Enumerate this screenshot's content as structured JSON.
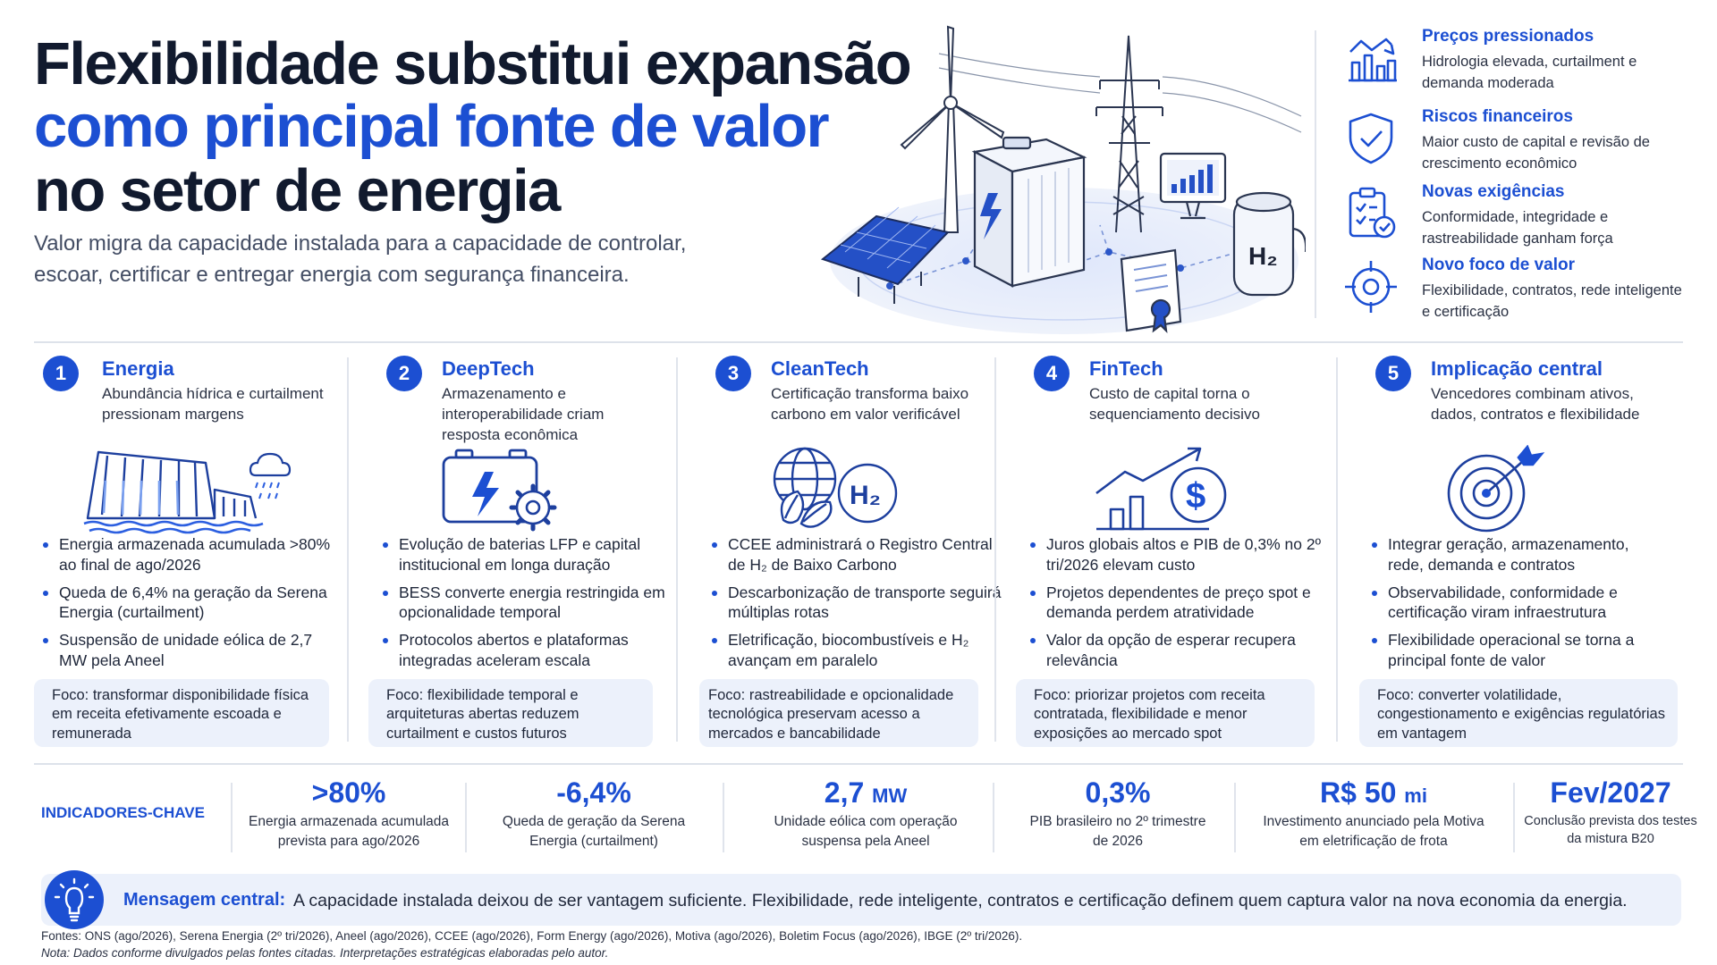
{
  "header": {
    "title_line1": "Flexibilidade substitui expansão",
    "title_line2": "como principal fonte de valor",
    "title_line3": "no setor de energia",
    "subtitle": "Valor migra da capacidade instalada para a capacidade de controlar, escoar, certificar e entregar energia com segurança financeira."
  },
  "highlights": [
    {
      "title": "Preços pressionados",
      "text": "Hidrologia elevada, curtailment e demanda moderada",
      "icon": "bar-chart-icon"
    },
    {
      "title": "Riscos financeiros",
      "text": "Maior custo de capital e revisão de crescimento econômico",
      "icon": "shield-check-icon"
    },
    {
      "title": "Novas exigências",
      "text": "Conformidade, integridade e rastreabilidade ganham força",
      "icon": "clipboard-check-icon"
    },
    {
      "title": "Novo foco de valor",
      "text": "Flexibilidade, contratos, rede inteligente e certificação",
      "icon": "target-crosshair-icon"
    }
  ],
  "hero": {
    "h2_label": "H₂"
  },
  "columns": [
    {
      "number": "1",
      "title": "Energia",
      "subtitle": "Abundância hídrica e curtailment pressionam margens",
      "icon": "hydro-dam-icon",
      "bullets": [
        "Energia armazenada acumulada >80% ao final de ago/2026",
        "Queda de 6,4% na geração da Serena Energia (curtailment)",
        "Suspensão de unidade eólica de 2,7 MW pela Aneel"
      ],
      "foco": "Foco: transformar disponibilidade física em receita efetivamente escoada e remunerada"
    },
    {
      "number": "2",
      "title": "DeepTech",
      "subtitle": "Armazenamento e interoperabilidade criam resposta econômica",
      "icon": "battery-gear-icon",
      "bullets": [
        "Evolução de baterias LFP e capital institucional em longa duração",
        "BESS converte energia restringida em opcionalidade temporal",
        "Protocolos abertos e plataformas integradas aceleram escala"
      ],
      "foco": "Foco: flexibilidade temporal e arquiteturas abertas reduzem curtailment e custos futuros"
    },
    {
      "number": "3",
      "title": "CleanTech",
      "subtitle": "Certificação transforma baixo carbono em valor verificável",
      "icon": "globe-leaf-h2-icon",
      "icon_label": "H₂",
      "bullets": [
        "CCEE administrará o Registro Central de H₂ de Baixo Carbono",
        "Descarbonização de transporte seguirá múltiplas rotas",
        "Eletrificação, biocombustíveis e H₂ avançam em paralelo"
      ],
      "foco": "Foco: rastreabilidade e opcionalidade tecnológica preservam acesso a mercados e bancabilidade"
    },
    {
      "number": "4",
      "title": "FinTech",
      "subtitle": "Custo de capital torna o sequenciamento decisivo",
      "icon": "growth-dollar-icon",
      "bullets": [
        "Juros globais altos e PIB de 0,3% no 2º tri/2026 elevam custo",
        "Projetos dependentes de preço spot e demanda perdem atratividade",
        "Valor da opção de esperar recupera relevância"
      ],
      "foco": "Foco: priorizar projetos com receita contratada, flexibilidade e menor exposições ao mercado spot"
    },
    {
      "number": "5",
      "title": "Implicação central",
      "subtitle": "Vencedores combinam ativos, dados, contratos e flexibilidade",
      "icon": "target-arrow-icon",
      "bullets": [
        "Integrar geração, armazenamento, rede, demanda e contratos",
        "Observabilidade, conformidade e certificação viram infraestrutura",
        "Flexibilidade operacional se torna a principal fonte de valor"
      ],
      "foco": "Foco: converter volatilidade, congestionamento e exigências regulatórias em vantagem"
    }
  ],
  "indicators": {
    "label": "INDICADORES-CHAVE",
    "items": [
      {
        "value": ">80%",
        "unit": "",
        "desc": "Energia armazenada acumulada prevista para ago/2026"
      },
      {
        "value": "-6,4%",
        "unit": "",
        "desc": "Queda de geração da Serena Energia (curtailment)"
      },
      {
        "value": "2,7",
        "unit": "MW",
        "desc": "Unidade eólica com operação suspensa pela Aneel"
      },
      {
        "value": "0,3%",
        "unit": "",
        "desc": "PIB brasileiro no 2º trimestre de 2026"
      },
      {
        "value": "R$ 50",
        "unit": "mi",
        "desc": "Investimento anunciado pela Motiva em eletrificação de frota"
      },
      {
        "value": "Fev/2027",
        "unit": "",
        "desc": "Conclusão prevista dos testes da mistura B20"
      }
    ]
  },
  "message": {
    "label": "Mensagem central:",
    "text": "A capacidade instalada deixou de ser vantagem suficiente.  Flexibilidade, rede inteligente, contratos e certificação definem quem captura valor na nova economia da energia.",
    "icon": "lightbulb-icon"
  },
  "footer": {
    "fontes": "Fontes: ONS (ago/2026), Serena Energia (2º tri/2026), Aneel (ago/2026), CCEE (ago/2026), Form Energy (ago/2026), Motiva (ago/2026), Boletim Focus (ago/2026), IBGE (2º tri/2026).",
    "nota": "Nota: Dados conforme divulgados pelas fontes citadas. Interpretações estratégicas elaboradas pelo autor."
  },
  "colors": {
    "accent": "#1c4fd2",
    "title": "#111a2e",
    "panel": "#ecf1fb"
  }
}
